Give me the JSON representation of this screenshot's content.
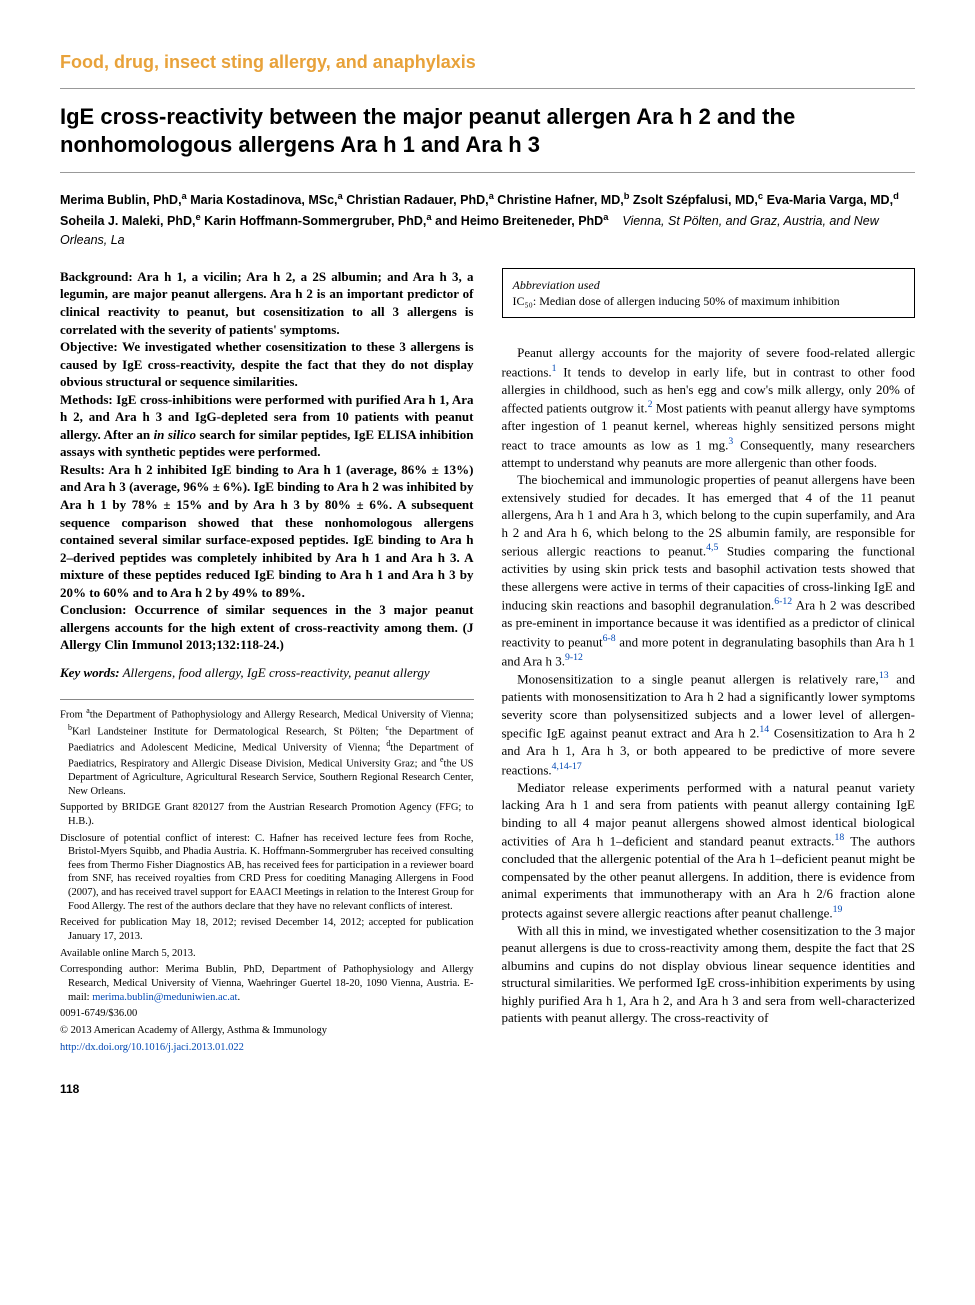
{
  "section_heading": "Food, drug, insect sting allergy, and anaphylaxis",
  "article_title": "IgE cross-reactivity between the major peanut allergen Ara h 2 and the nonhomologous allergens Ara h 1 and Ara h 3",
  "authors_html": "Merima Bublin, PhD,<sup>a</sup> Maria Kostadinova, MSc,<sup>a</sup> Christian Radauer, PhD,<sup>a</sup> Christine Hafner, MD,<sup>b</sup> Zsolt Szépfalusi, MD,<sup>c</sup> Eva-Maria Varga, MD,<sup>d</sup> Soheila J. Maleki, PhD,<sup>e</sup> Karin Hoffmann-Sommergruber, PhD,<sup>a</sup> and Heimo Breiteneder, PhD<sup>a</sup>",
  "affiliations": "Vienna, St Pölten, and Graz, Austria, and New Orleans, La",
  "abstract": {
    "background": "Ara h 1, a vicilin; Ara h 2, a 2S albumin; and Ara h 3, a legumin, are major peanut allergens. Ara h 2 is an important predictor of clinical reactivity to peanut, but cosensitization to all 3 allergens is correlated with the severity of patients' symptoms.",
    "objective": "We investigated whether cosensitization to these 3 allergens is caused by IgE cross-reactivity, despite the fact that they do not display obvious structural or sequence similarities.",
    "methods": "IgE cross-inhibitions were performed with purified Ara h 1, Ara h 2, and Ara h 3 and IgG-depleted sera from 10 patients with peanut allergy. After an in silico search for similar peptides, IgE ELISA inhibition assays with synthetic peptides were performed.",
    "results": "Ara h 2 inhibited IgE binding to Ara h 1 (average, 86% ± 13%) and Ara h 3 (average, 96% ± 6%). IgE binding to Ara h 2 was inhibited by Ara h 1 by 78% ± 15% and by Ara h 3 by 80% ± 6%. A subsequent sequence comparison showed that these nonhomologous allergens contained several similar surface-exposed peptides. IgE binding to Ara h 2–derived peptides was completely inhibited by Ara h 1 and Ara h 3. A mixture of these peptides reduced IgE binding to Ara h 1 and Ara h 3 by 20% to 60% and to Ara h 2 by 49% to 89%.",
    "conclusion": "Occurrence of similar sequences in the 3 major peanut allergens accounts for the high extent of cross-reactivity among them. (J Allergy Clin Immunol 2013;132:118-24.)"
  },
  "keywords_label": "Key words:",
  "keywords": "Allergens, food allergy, IgE cross-reactivity, peanut allergy",
  "footnotes": {
    "from": "From <sup>a</sup>the Department of Pathophysiology and Allergy Research, Medical University of Vienna; <sup>b</sup>Karl Landsteiner Institute for Dermatological Research, St Pölten; <sup>c</sup>the Department of Paediatrics and Adolescent Medicine, Medical University of Vienna; <sup>d</sup>the Department of Paediatrics, Respiratory and Allergic Disease Division, Medical University Graz; and <sup>e</sup>the US Department of Agriculture, Agricultural Research Service, Southern Regional Research Center, New Orleans.",
    "support": "Supported by BRIDGE Grant 820127 from the Austrian Research Promotion Agency (FFG; to H.B.).",
    "disclosure": "Disclosure of potential conflict of interest: C. Hafner has received lecture fees from Roche, Bristol-Myers Squibb, and Phadia Austria. K. Hoffmann-Sommergruber has received consulting fees from Thermo Fisher Diagnostics AB, has received fees for participation in a reviewer board from SNF, has received royalties from CRD Press for coediting Managing Allergens in Food (2007), and has received travel support for EAACI Meetings in relation to the Interest Group for Food Allergy. The rest of the authors declare that they have no relevant conflicts of interest.",
    "received": "Received for publication May 18, 2012; revised December 14, 2012; accepted for publication January 17, 2013.",
    "online": "Available online March 5, 2013.",
    "corresponding": "Corresponding author: Merima Bublin, PhD, Department of Pathophysiology and Allergy Research, Medical University of Vienna, Waehringer Guertel 18-20, 1090 Vienna, Austria. E-mail: ",
    "email": "merima.bublin@meduniwien.ac.at",
    "issn": "0091-6749/$36.00",
    "copyright": "© 2013 American Academy of Allergy, Asthma & Immunology",
    "doi": "http://dx.doi.org/10.1016/j.jaci.2013.01.022"
  },
  "abbrev": {
    "title": "Abbreviation used",
    "line": "IC₅₀: Median dose of allergen inducing 50% of maximum inhibition"
  },
  "body_paragraphs": [
    "Peanut allergy accounts for the majority of severe food-related allergic reactions.<sup class=\"cite\">1</sup> It tends to develop in early life, but in contrast to other food allergies in childhood, such as hen's egg and cow's milk allergy, only 20% of affected patients outgrow it.<sup class=\"cite\">2</sup> Most patients with peanut allergy have symptoms after ingestion of 1 peanut kernel, whereas highly sensitized persons might react to trace amounts as low as 1 mg.<sup class=\"cite\">3</sup> Consequently, many researchers attempt to understand why peanuts are more allergenic than other foods.",
    "The biochemical and immunologic properties of peanut allergens have been extensively studied for decades. It has emerged that 4 of the 11 peanut allergens, Ara h 1 and Ara h 3, which belong to the cupin superfamily, and Ara h 2 and Ara h 6, which belong to the 2S albumin family, are responsible for serious allergic reactions to peanut.<sup class=\"cite\">4,5</sup> Studies comparing the functional activities by using skin prick tests and basophil activation tests showed that these allergens were active in terms of their capacities of cross-linking IgE and inducing skin reactions and basophil degranulation.<sup class=\"cite\">6-12</sup> Ara h 2 was described as pre-eminent in importance because it was identified as a predictor of clinical reactivity to peanut<sup class=\"cite\">6-8</sup> and more potent in degranulating basophils than Ara h 1 and Ara h 3.<sup class=\"cite\">9-12</sup>",
    "Monosensitization to a single peanut allergen is relatively rare,<sup class=\"cite\">13</sup> and patients with monosensitization to Ara h 2 had a significantly lower symptoms severity score than polysensitized subjects and a lower level of allergen-specific IgE against peanut extract and Ara h 2.<sup class=\"cite\">14</sup> Cosensitization to Ara h 2 and Ara h 1, Ara h 3, or both appeared to be predictive of more severe reactions.<sup class=\"cite\">4,14-17</sup>",
    "Mediator release experiments performed with a natural peanut variety lacking Ara h 1 and sera from patients with peanut allergy containing IgE binding to all 4 major peanut allergens showed almost identical biological activities of Ara h 1–deficient and standard peanut extracts.<sup class=\"cite\">18</sup> The authors concluded that the allergenic potential of the Ara h 1–deficient peanut might be compensated by the other peanut allergens. In addition, there is evidence from animal experiments that immunotherapy with an Ara h 2/6 fraction alone protects against severe allergic reactions after peanut challenge.<sup class=\"cite\">19</sup>",
    "With all this in mind, we investigated whether cosensitization to the 3 major peanut allergens is due to cross-reactivity among them, despite the fact that 2S albumins and cupins do not display obvious linear sequence identities and structural similarities. We performed IgE cross-inhibition experiments by using highly purified Ara h 1, Ara h 2, and Ara h 3 and sera from well-characterized patients with peanut allergy. The cross-reactivity of"
  ],
  "page_number": "118",
  "colors": {
    "section_heading": "#e8a23a",
    "link": "#0047b3",
    "text": "#000000",
    "rule": "#999999",
    "background": "#ffffff"
  }
}
